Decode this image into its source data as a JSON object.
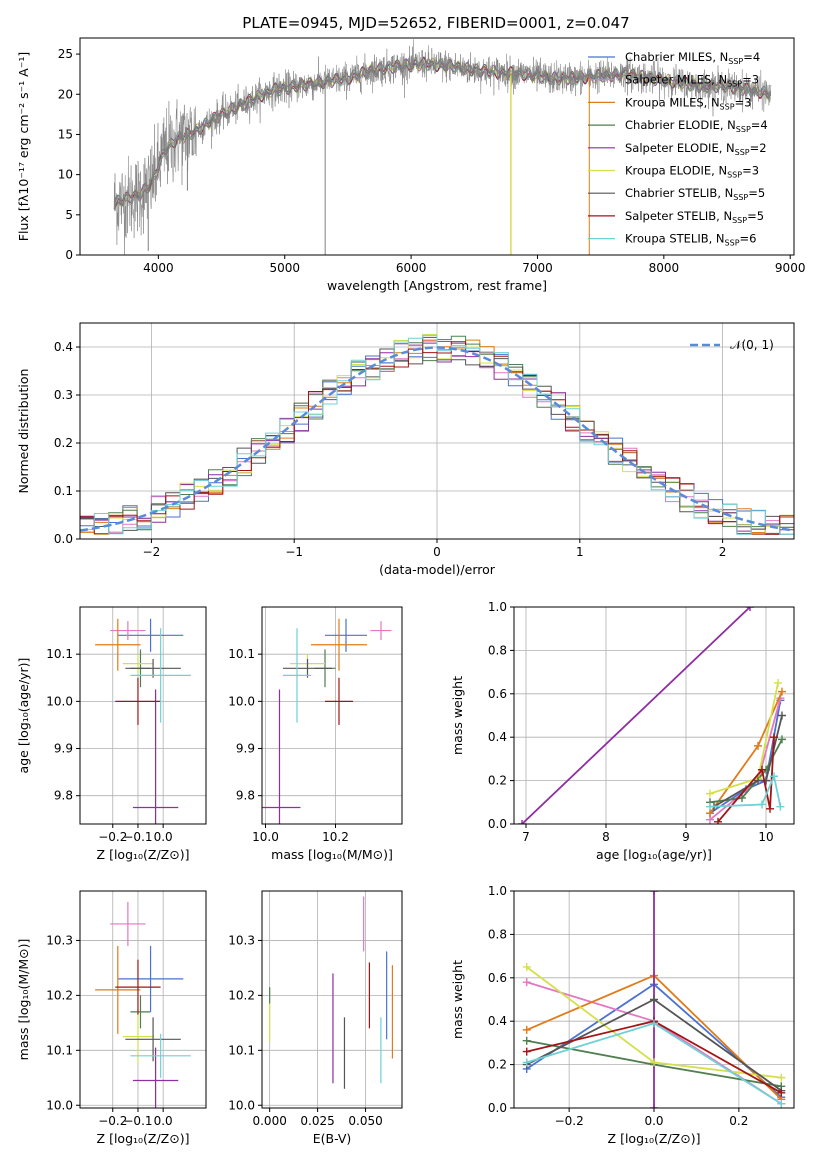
{
  "figure_title": "PLATE=0945, MJD=52652, FIBERID=0001, z=0.047",
  "colors": {
    "Chabrier MILES": "#4a72d0",
    "Salpeter MILES": "#e377c2",
    "Kroupa MILES": "#e07b1a",
    "Chabrier ELODIE": "#4f7f4f",
    "Salpeter ELODIE": "#8e2ea0",
    "Kroupa ELODIE": "#d4e04a",
    "Chabrier STELIB": "#555555",
    "Salpeter STELIB": "#a31515",
    "Kroupa STELIB": "#6fd0d6",
    "normal": "#5b8bd8",
    "data": "#808080"
  },
  "chart_data": [
    {
      "id": "spectrum",
      "type": "line",
      "title": "PLATE=0945, MJD=52652, FIBERID=0001, z=0.047",
      "xlabel": "wavelength [Angstrom, rest frame]",
      "ylabel": "Flux [fλ10⁻¹⁷ erg cm⁻² s⁻¹ A⁻¹]",
      "xlim": [
        3380,
        9030
      ],
      "ylim": [
        0,
        27
      ],
      "xticks": [
        4000,
        5000,
        6000,
        7000,
        8000,
        9000
      ],
      "yticks": [
        0,
        5,
        10,
        15,
        20,
        25
      ],
      "legend": "top-right",
      "grid": false,
      "legend_entries": [
        {
          "label": "Chabrier MILES, N",
          "ssp": "=4"
        },
        {
          "label": "Salpeter MILES, N",
          "ssp": "=3"
        },
        {
          "label": "Kroupa MILES, N",
          "ssp": "=3"
        },
        {
          "label": "Chabrier ELODIE, N",
          "ssp": "=4"
        },
        {
          "label": "Salpeter ELODIE, N",
          "ssp": "=2"
        },
        {
          "label": "Kroupa ELODIE, N",
          "ssp": "=3"
        },
        {
          "label": "Chabrier STELIB, N",
          "ssp": "=5"
        },
        {
          "label": "Salpeter STELIB, N",
          "ssp": "=5"
        },
        {
          "label": "Kroupa STELIB, N",
          "ssp": "=6"
        }
      ],
      "ssp_subscript": "SSP",
      "continuum": {
        "x": [
          3650,
          3750,
          3850,
          3950,
          4050,
          4150,
          4250,
          4350,
          4500,
          4700,
          4900,
          5100,
          5300,
          5500,
          5700,
          5900,
          6100,
          6300,
          6500,
          6700,
          6900,
          7100,
          7300,
          7500,
          7700,
          7900,
          8100,
          8300,
          8500,
          8700,
          8850
        ],
        "y": [
          6.5,
          7,
          7.5,
          9,
          13,
          14.5,
          15,
          16,
          17.5,
          19,
          20.5,
          21,
          21.5,
          22,
          23,
          23.5,
          23.8,
          23.5,
          23,
          22.7,
          22.5,
          22,
          22,
          22.3,
          22.5,
          22,
          21.5,
          21,
          21,
          20.5,
          20
        ]
      }
    },
    {
      "id": "residuals",
      "type": "histogram",
      "xlabel": "(data-model)/error",
      "ylabel": "Normed distribution",
      "xlim": [
        -2.5,
        2.5
      ],
      "ylim": [
        0,
        0.45
      ],
      "xticks": [
        -2,
        -1,
        0,
        1,
        2
      ],
      "yticks": [
        0.0,
        0.1,
        0.2,
        0.3,
        0.4
      ],
      "grid": true,
      "legend": "top-right",
      "legend_label": "𝒩(0, 1)",
      "bin_width": 0.1
    },
    {
      "id": "age_vs_Z",
      "type": "errorbar",
      "xlabel": "Z [log₁₀(Z/Z⊙)]",
      "ylabel": "age  [log₁₀(age/yr)]",
      "xlim": [
        -0.33,
        0.17
      ],
      "ylim": [
        9.74,
        10.2
      ],
      "xticks": [
        -0.2,
        -0.1,
        0.0
      ],
      "yticks": [
        9.8,
        9.9,
        10.0,
        10.1
      ],
      "grid": true,
      "points": [
        {
          "series": "Chabrier MILES",
          "x": -0.05,
          "xerr": 0.13,
          "y": 10.14,
          "yerr": 0.035
        },
        {
          "series": "Salpeter MILES",
          "x": -0.14,
          "xerr": 0.07,
          "y": 10.15,
          "yerr": 0.02
        },
        {
          "series": "Kroupa MILES",
          "x": -0.18,
          "xerr": 0.09,
          "y": 10.12,
          "yerr": 0.055
        },
        {
          "series": "Chabrier ELODIE",
          "x": -0.09,
          "xerr": 0.04,
          "y": 10.07,
          "yerr": 0.04
        },
        {
          "series": "Salpeter ELODIE",
          "x": -0.03,
          "xerr": 0.09,
          "y": 9.775,
          "yerr": 0.25
        },
        {
          "series": "Kroupa ELODIE",
          "x": -0.1,
          "xerr": 0.06,
          "y": 10.08,
          "yerr": 0.02
        },
        {
          "series": "Chabrier STELIB",
          "x": -0.04,
          "xerr": 0.11,
          "y": 10.07,
          "yerr": 0.02
        },
        {
          "series": "Salpeter STELIB",
          "x": -0.1,
          "xerr": 0.09,
          "y": 10.0,
          "yerr": 0.05
        },
        {
          "series": "Kroupa STELIB",
          "x": -0.01,
          "xerr": 0.12,
          "y": 10.055,
          "yerr": 0.1
        }
      ]
    },
    {
      "id": "age_vs_mass",
      "type": "errorbar",
      "xlabel": "mass [log₁₀(M/M⊙)]",
      "ylabel": "",
      "xlim": [
        9.99,
        10.39
      ],
      "ylim": [
        9.74,
        10.2
      ],
      "xticks": [
        10.0,
        10.2
      ],
      "yticks": [
        9.8,
        9.9,
        10.0,
        10.1
      ],
      "grid": true,
      "points": [
        {
          "series": "Chabrier MILES",
          "x": 10.23,
          "xerr": 0.06,
          "y": 10.14,
          "yerr": 0.035
        },
        {
          "series": "Salpeter MILES",
          "x": 10.33,
          "xerr": 0.03,
          "y": 10.15,
          "yerr": 0.02
        },
        {
          "series": "Kroupa MILES",
          "x": 10.21,
          "xerr": 0.08,
          "y": 10.12,
          "yerr": 0.055
        },
        {
          "series": "Chabrier ELODIE",
          "x": 10.17,
          "xerr": 0.03,
          "y": 10.07,
          "yerr": 0.04
        },
        {
          "series": "Salpeter ELODIE",
          "x": 10.04,
          "xerr": 0.06,
          "y": 9.775,
          "yerr": 0.25
        },
        {
          "series": "Kroupa ELODIE",
          "x": 10.12,
          "xerr": 0.05,
          "y": 10.08,
          "yerr": 0.02
        },
        {
          "series": "Chabrier STELIB",
          "x": 10.12,
          "xerr": 0.07,
          "y": 10.07,
          "yerr": 0.02
        },
        {
          "series": "Salpeter STELIB",
          "x": 10.21,
          "xerr": 0.04,
          "y": 10.0,
          "yerr": 0.05
        },
        {
          "series": "Kroupa STELIB",
          "x": 10.09,
          "xerr": 0.04,
          "y": 10.055,
          "yerr": 0.1
        }
      ]
    },
    {
      "id": "weight_vs_age",
      "type": "line",
      "xlabel": "age  [log₁₀(age/yr)]",
      "ylabel": "mass weight",
      "xlim": [
        6.85,
        10.35
      ],
      "ylim": [
        0,
        1
      ],
      "xticks": [
        7,
        8,
        9,
        10
      ],
      "yticks": [
        0.0,
        0.2,
        0.4,
        0.6,
        0.8,
        1.0
      ],
      "grid": true,
      "series": [
        {
          "name": "Chabrier MILES",
          "x": [
            9.3,
            9.75,
            10.0,
            10.18
          ],
          "y": [
            0.05,
            0.16,
            0.2,
            0.57
          ]
        },
        {
          "name": "Salpeter MILES",
          "x": [
            9.3,
            9.9,
            10.18
          ],
          "y": [
            0.02,
            0.2,
            0.58
          ]
        },
        {
          "name": "Kroupa MILES",
          "x": [
            9.3,
            9.9,
            10.2
          ],
          "y": [
            0.05,
            0.36,
            0.61
          ]
        },
        {
          "name": "Chabrier ELODIE",
          "x": [
            9.3,
            9.7,
            10.0,
            10.2
          ],
          "y": [
            0.1,
            0.12,
            0.25,
            0.39
          ]
        },
        {
          "name": "Salpeter ELODIE",
          "x": [
            6.95,
            9.8
          ],
          "y": [
            0.0,
            1.0
          ]
        },
        {
          "name": "Kroupa ELODIE",
          "x": [
            9.3,
            9.9,
            10.15
          ],
          "y": [
            0.14,
            0.21,
            0.65
          ]
        },
        {
          "name": "Chabrier STELIB",
          "x": [
            9.35,
            9.9,
            10.0,
            10.2
          ],
          "y": [
            0.08,
            0.2,
            0.2,
            0.5
          ]
        },
        {
          "name": "Salpeter STELIB",
          "x": [
            9.4,
            9.95,
            10.05,
            10.1
          ],
          "y": [
            0.01,
            0.25,
            0.07,
            0.4
          ]
        },
        {
          "name": "Kroupa STELIB",
          "x": [
            9.3,
            9.95,
            10.1,
            10.18
          ],
          "y": [
            0.08,
            0.09,
            0.22,
            0.08
          ]
        }
      ]
    },
    {
      "id": "mass_vs_Z",
      "type": "errorbar",
      "xlabel": "Z [log₁₀(Z/Z⊙)]",
      "ylabel": "mass [log₁₀(M/M⊙)]",
      "xlim": [
        -0.33,
        0.17
      ],
      "ylim": [
        9.995,
        10.39
      ],
      "xticks": [
        -0.2,
        -0.1,
        0.0
      ],
      "yticks": [
        10.0,
        10.1,
        10.2,
        10.3
      ],
      "grid": true,
      "points": [
        {
          "series": "Chabrier MILES",
          "x": -0.05,
          "xerr": 0.13,
          "y": 10.23,
          "yerr": 0.06
        },
        {
          "series": "Salpeter MILES",
          "x": -0.14,
          "xerr": 0.07,
          "y": 10.33,
          "yerr": 0.04
        },
        {
          "series": "Kroupa MILES",
          "x": -0.18,
          "xerr": 0.09,
          "y": 10.21,
          "yerr": 0.08
        },
        {
          "series": "Chabrier ELODIE",
          "x": -0.09,
          "xerr": 0.04,
          "y": 10.17,
          "yerr": 0.03
        },
        {
          "series": "Salpeter ELODIE",
          "x": -0.03,
          "xerr": 0.09,
          "y": 10.045,
          "yerr": 0.06
        },
        {
          "series": "Kroupa ELODIE",
          "x": -0.1,
          "xerr": 0.06,
          "y": 10.125,
          "yerr": 0.05
        },
        {
          "series": "Chabrier STELIB",
          "x": -0.04,
          "xerr": 0.11,
          "y": 10.12,
          "yerr": 0.04
        },
        {
          "series": "Salpeter STELIB",
          "x": -0.1,
          "xerr": 0.09,
          "y": 10.215,
          "yerr": 0.05
        },
        {
          "series": "Kroupa STELIB",
          "x": -0.01,
          "xerr": 0.12,
          "y": 10.09,
          "yerr": 0.04
        }
      ]
    },
    {
      "id": "mass_vs_ebv",
      "type": "errorbar",
      "xlabel": "E(B-V)",
      "ylabel": "",
      "xlim": [
        -0.004,
        0.069
      ],
      "ylim": [
        9.995,
        10.39
      ],
      "xticks": [
        0.0,
        0.025,
        0.05
      ],
      "xticklabels": [
        "0.000",
        "0.025",
        "0.050"
      ],
      "yticks": [
        10.0,
        10.1,
        10.2,
        10.3
      ],
      "grid": true,
      "points": [
        {
          "series": "Chabrier MILES",
          "x": 0.061,
          "y": 10.2,
          "yerr": 0.08
        },
        {
          "series": "Salpeter MILES",
          "x": 0.049,
          "y": 10.33,
          "yerr": 0.05
        },
        {
          "series": "Kroupa MILES",
          "x": 0.064,
          "y": 10.17,
          "yerr": 0.085
        },
        {
          "series": "Chabrier ELODIE",
          "x": 0.0,
          "y": 10.2,
          "yerr": 0.015
        },
        {
          "series": "Salpeter ELODIE",
          "x": 0.033,
          "y": 10.14,
          "yerr": 0.1
        },
        {
          "series": "Kroupa ELODIE",
          "x": 0.0,
          "y": 10.15,
          "yerr": 0.035
        },
        {
          "series": "Chabrier STELIB",
          "x": 0.039,
          "y": 10.095,
          "yerr": 0.065
        },
        {
          "series": "Salpeter STELIB",
          "x": 0.052,
          "y": 10.2,
          "yerr": 0.06
        },
        {
          "series": "Kroupa STELIB",
          "x": 0.058,
          "y": 10.1,
          "yerr": 0.06
        }
      ]
    },
    {
      "id": "weight_vs_Z",
      "type": "line",
      "xlabel": "Z [log₁₀(Z/Z⊙)]",
      "ylabel": "mass weight",
      "xlim": [
        -0.33,
        0.33
      ],
      "ylim": [
        0,
        1
      ],
      "xticks": [
        -0.2,
        0.0,
        0.2
      ],
      "yticks": [
        0.0,
        0.2,
        0.4,
        0.6,
        0.8,
        1.0
      ],
      "grid": true,
      "series": [
        {
          "name": "Chabrier MILES",
          "x": [
            -0.3,
            0.0,
            0.3
          ],
          "y": [
            0.18,
            0.57,
            0.05
          ]
        },
        {
          "name": "Salpeter MILES",
          "x": [
            -0.3,
            0.0,
            0.3
          ],
          "y": [
            0.58,
            0.4,
            0.02
          ]
        },
        {
          "name": "Kroupa MILES",
          "x": [
            -0.3,
            0.0,
            0.3
          ],
          "y": [
            0.36,
            0.61,
            0.04
          ]
        },
        {
          "name": "Chabrier ELODIE",
          "x": [
            -0.3,
            0.0,
            0.3
          ],
          "y": [
            0.31,
            0.2,
            0.1
          ]
        },
        {
          "name": "Salpeter ELODIE",
          "x": [
            0.0,
            0.0
          ],
          "y": [
            1.0,
            0.0
          ]
        },
        {
          "name": "Kroupa ELODIE",
          "x": [
            -0.3,
            0.0,
            0.3
          ],
          "y": [
            0.65,
            0.21,
            0.14
          ]
        },
        {
          "name": "Chabrier STELIB",
          "x": [
            -0.3,
            0.0,
            0.3
          ],
          "y": [
            0.2,
            0.5,
            0.08
          ]
        },
        {
          "name": "Salpeter STELIB",
          "x": [
            -0.3,
            0.0,
            0.3
          ],
          "y": [
            0.26,
            0.4,
            0.07
          ]
        },
        {
          "name": "Kroupa STELIB",
          "x": [
            -0.3,
            0.0,
            0.3
          ],
          "y": [
            0.21,
            0.39,
            0.02
          ]
        }
      ]
    }
  ]
}
